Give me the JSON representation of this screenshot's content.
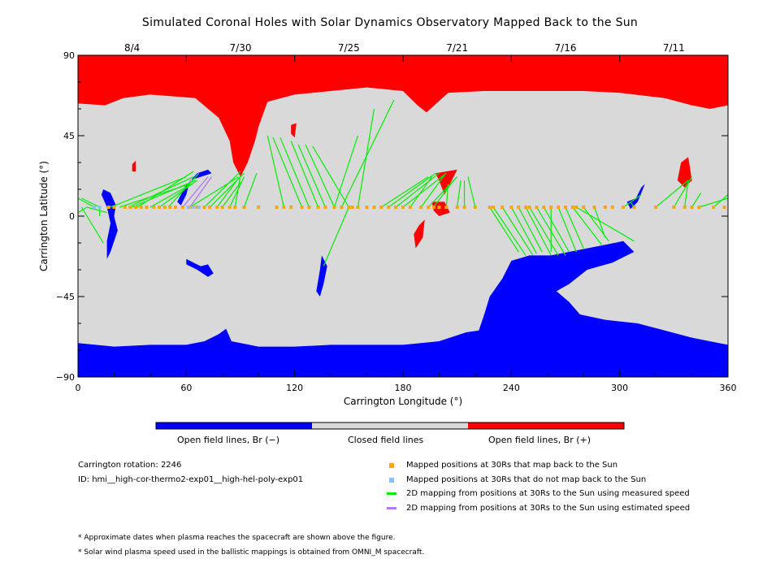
{
  "title": "Simulated Coronal Holes with Solar Dynamics Observatory Mapped Back to the Sun",
  "colors": {
    "open_negative": "#0000ff",
    "closed": "#d9d9d9",
    "open_positive": "#ff0000",
    "mapped": "#ffa500",
    "unmapped": "#87bfff",
    "measured_line": "#00ee00",
    "estimated_line": "#b07cf0"
  },
  "colorbar": {
    "labels": [
      "Open field lines, Br (−)",
      "Closed field lines",
      "Open field lines, Br (+)"
    ]
  },
  "info": {
    "rotation": "Carrington rotation: 2246",
    "id": "ID: hmi__high-cor-thermo2-exp01__high-hel-poly-exp01"
  },
  "legend": [
    {
      "kind": "square",
      "color": "#ffa500",
      "label": "Mapped positions at 30Rs that map back to the Sun"
    },
    {
      "kind": "square",
      "color": "#87bfff",
      "label": "Mapped positions at 30Rs that do not map back to the Sun"
    },
    {
      "kind": "line",
      "color": "#00ee00",
      "label": "2D mapping from positions at 30Rs to the Sun using measured speed"
    },
    {
      "kind": "line",
      "color": "#b07cf0",
      "label": "2D mapping from positions at 30Rs to the Sun using estimated speed"
    }
  ],
  "notes": [
    "* Approximate dates when plasma reaches the spacecraft are shown above the figure.",
    "* Solar wind plasma speed used in the ballistic mappings is obtained from OMNI_M spacecraft."
  ],
  "chart_data": {
    "type": "map",
    "xlabel": "Carrington Longitude (°)",
    "ylabel": "Carrington Latitude (°)",
    "xlim": [
      0,
      360
    ],
    "ylim": [
      -90,
      90
    ],
    "x_ticks": [
      0,
      60,
      120,
      180,
      240,
      300,
      360
    ],
    "y_ticks": [
      90,
      45,
      0,
      -45,
      -90
    ],
    "y_tick_labels": [
      "90",
      "45",
      "0",
      "−45",
      "−90"
    ],
    "date_ticks": [
      {
        "lon": 30,
        "label": "8/4"
      },
      {
        "lon": 90,
        "label": "7/30"
      },
      {
        "lon": 150,
        "label": "7/25"
      },
      {
        "lon": 210,
        "label": "7/21"
      },
      {
        "lon": 270,
        "label": "7/16"
      },
      {
        "lon": 330,
        "label": "7/11"
      }
    ],
    "regions": [
      {
        "type": "open_positive",
        "points": [
          [
            0,
            90
          ],
          [
            360,
            90
          ],
          [
            360,
            62
          ],
          [
            350,
            60
          ],
          [
            340,
            62
          ],
          [
            325,
            66
          ],
          [
            300,
            69
          ],
          [
            280,
            70
          ],
          [
            260,
            70
          ],
          [
            240,
            70
          ],
          [
            225,
            70
          ],
          [
            205,
            69
          ],
          [
            193,
            58
          ],
          [
            188,
            62
          ],
          [
            180,
            70
          ],
          [
            160,
            72
          ],
          [
            140,
            70
          ],
          [
            120,
            68
          ],
          [
            105,
            64
          ],
          [
            100,
            50
          ],
          [
            98,
            42
          ],
          [
            94,
            30
          ],
          [
            90,
            22
          ],
          [
            86,
            30
          ],
          [
            84,
            42
          ],
          [
            78,
            55
          ],
          [
            65,
            66
          ],
          [
            40,
            68
          ],
          [
            25,
            66
          ],
          [
            15,
            62
          ],
          [
            0,
            63
          ]
        ]
      },
      {
        "type": "open_positive",
        "points": [
          [
            118,
            51
          ],
          [
            121,
            52
          ],
          [
            120,
            44
          ],
          [
            118,
            46
          ]
        ]
      },
      {
        "type": "open_positive",
        "points": [
          [
            198,
            24
          ],
          [
            210,
            26
          ],
          [
            207,
            20
          ],
          [
            203,
            12
          ],
          [
            200,
            20
          ]
        ]
      },
      {
        "type": "open_positive",
        "points": [
          [
            196,
            8
          ],
          [
            203,
            8
          ],
          [
            206,
            2
          ],
          [
            200,
            0
          ],
          [
            197,
            3
          ]
        ]
      },
      {
        "type": "open_positive",
        "points": [
          [
            189,
            -5
          ],
          [
            192,
            -2
          ],
          [
            191,
            -12
          ],
          [
            187,
            -18
          ],
          [
            186,
            -10
          ]
        ]
      },
      {
        "type": "open_positive",
        "points": [
          [
            334,
            30
          ],
          [
            338,
            33
          ],
          [
            340,
            20
          ],
          [
            336,
            16
          ],
          [
            332,
            20
          ]
        ]
      },
      {
        "type": "open_positive",
        "points": [
          [
            30,
            29
          ],
          [
            32,
            31
          ],
          [
            32,
            25
          ],
          [
            30,
            25
          ]
        ]
      },
      {
        "type": "open_negative",
        "points": [
          [
            0,
            -71
          ],
          [
            20,
            -73
          ],
          [
            40,
            -72
          ],
          [
            60,
            -72
          ],
          [
            70,
            -70
          ],
          [
            78,
            -66
          ],
          [
            82,
            -63
          ],
          [
            85,
            -70
          ],
          [
            100,
            -73
          ],
          [
            120,
            -73
          ],
          [
            140,
            -72
          ],
          [
            160,
            -72
          ],
          [
            180,
            -72
          ],
          [
            200,
            -70
          ],
          [
            215,
            -65
          ],
          [
            222,
            -64
          ],
          [
            225,
            -55
          ],
          [
            228,
            -45
          ],
          [
            235,
            -35
          ],
          [
            240,
            -25
          ],
          [
            250,
            -22
          ],
          [
            262,
            -22
          ],
          [
            272,
            -20
          ],
          [
            282,
            -18
          ],
          [
            292,
            -16
          ],
          [
            302,
            -14
          ],
          [
            308,
            -20
          ],
          [
            296,
            -26
          ],
          [
            282,
            -30
          ],
          [
            272,
            -38
          ],
          [
            265,
            -42
          ],
          [
            272,
            -48
          ],
          [
            278,
            -55
          ],
          [
            292,
            -58
          ],
          [
            310,
            -60
          ],
          [
            325,
            -64
          ],
          [
            340,
            -68
          ],
          [
            360,
            -72
          ],
          [
            360,
            -90
          ],
          [
            0,
            -90
          ]
        ]
      },
      {
        "type": "open_negative",
        "points": [
          [
            60,
            -24
          ],
          [
            64,
            -26
          ],
          [
            68,
            -28
          ],
          [
            72,
            -27
          ],
          [
            75,
            -32
          ],
          [
            72,
            -34
          ],
          [
            66,
            -30
          ],
          [
            60,
            -27
          ]
        ]
      },
      {
        "type": "open_negative",
        "points": [
          [
            135,
            -22
          ],
          [
            138,
            -28
          ],
          [
            136,
            -38
          ],
          [
            134,
            -45
          ],
          [
            132,
            -42
          ],
          [
            134,
            -30
          ]
        ]
      },
      {
        "type": "open_negative",
        "points": [
          [
            14,
            15
          ],
          [
            18,
            13
          ],
          [
            21,
            6
          ],
          [
            20,
            0
          ],
          [
            22,
            -8
          ],
          [
            18,
            -20
          ],
          [
            16,
            -24
          ],
          [
            16,
            -14
          ],
          [
            18,
            -4
          ],
          [
            16,
            5
          ],
          [
            13,
            12
          ]
        ]
      },
      {
        "type": "open_negative",
        "points": [
          [
            66,
            24
          ],
          [
            72,
            26
          ],
          [
            74,
            24
          ],
          [
            68,
            22
          ],
          [
            62,
            20
          ],
          [
            60,
            12
          ],
          [
            57,
            6
          ],
          [
            55,
            8
          ],
          [
            59,
            16
          ]
        ]
      },
      {
        "type": "open_negative",
        "points": [
          [
            312,
            16
          ],
          [
            314,
            18
          ],
          [
            310,
            8
          ],
          [
            306,
            4
          ],
          [
            304,
            8
          ],
          [
            309,
            10
          ]
        ]
      }
    ],
    "mapped_points": {
      "lat": 5,
      "mapped_lons": [
        17,
        20,
        26,
        29,
        32,
        35,
        38,
        42,
        45,
        48,
        51,
        54,
        58,
        62,
        66,
        70,
        73,
        77,
        80,
        84,
        87,
        92,
        100,
        110,
        114,
        118,
        124,
        128,
        133,
        137,
        142,
        146,
        150,
        152,
        155,
        160,
        164,
        168,
        172,
        176,
        180,
        184,
        190,
        194,
        197,
        200,
        204,
        210,
        214,
        220,
        228,
        230,
        235,
        240,
        244,
        248,
        250,
        254,
        258,
        262,
        266,
        270,
        274,
        276,
        280,
        286,
        292,
        296,
        302,
        308,
        320,
        330,
        336,
        340,
        344,
        352,
        358
      ],
      "unmapped_lons": [
        9,
        12,
        61,
        64,
        67
      ]
    },
    "mappings_measured": [
      [
        12,
        0,
        12
      ],
      [
        16,
        2,
        5
      ],
      [
        14,
        -15,
        2
      ],
      [
        60,
        22,
        18
      ],
      [
        62,
        18,
        23
      ],
      [
        64,
        22,
        28
      ],
      [
        65,
        20,
        30
      ],
      [
        64,
        25,
        33
      ],
      [
        63,
        18,
        40
      ],
      [
        66,
        20,
        45
      ],
      [
        67,
        24,
        50
      ],
      [
        89,
        22,
        62
      ],
      [
        90,
        25,
        70
      ],
      [
        92,
        24,
        73
      ],
      [
        88,
        20,
        77
      ],
      [
        90,
        19,
        80
      ],
      [
        92,
        22,
        84
      ],
      [
        90,
        23,
        87
      ],
      [
        99,
        24,
        92
      ],
      [
        105,
        45,
        114
      ],
      [
        108,
        44,
        124
      ],
      [
        112,
        44,
        128
      ],
      [
        118,
        42,
        133
      ],
      [
        122,
        40,
        137
      ],
      [
        126,
        40,
        142
      ],
      [
        130,
        39,
        150
      ],
      [
        175,
        65,
        146
      ],
      [
        164,
        60,
        155
      ],
      [
        155,
        45,
        142
      ],
      [
        136,
        -28,
        150
      ],
      [
        194,
        22,
        168
      ],
      [
        198,
        24,
        172
      ],
      [
        200,
        24,
        176
      ],
      [
        204,
        24,
        180
      ],
      [
        196,
        22,
        184
      ],
      [
        203,
        23,
        190
      ],
      [
        210,
        22,
        194
      ],
      [
        208,
        20,
        197
      ],
      [
        205,
        18,
        204
      ],
      [
        212,
        20,
        210
      ],
      [
        214,
        20,
        214
      ],
      [
        216,
        22,
        220
      ],
      [
        244,
        -20,
        228
      ],
      [
        248,
        -22,
        230
      ],
      [
        252,
        -22,
        235
      ],
      [
        254,
        -21,
        240
      ],
      [
        257,
        -20,
        244
      ],
      [
        262,
        -22,
        248
      ],
      [
        266,
        -22,
        250
      ],
      [
        270,
        -22,
        254
      ],
      [
        272,
        -20,
        258
      ],
      [
        262,
        -20,
        262
      ],
      [
        276,
        -20,
        266
      ],
      [
        280,
        -18,
        270
      ],
      [
        290,
        -16,
        274
      ],
      [
        308,
        -14,
        276
      ],
      [
        294,
        -14,
        280
      ],
      [
        292,
        -12,
        286
      ],
      [
        312,
        12,
        302
      ],
      [
        306,
        8,
        308
      ],
      [
        338,
        20,
        320
      ],
      [
        340,
        22,
        330
      ],
      [
        338,
        20,
        336
      ],
      [
        345,
        13,
        340
      ],
      [
        360,
        10,
        344
      ],
      [
        360,
        12,
        352
      ],
      [
        0,
        10,
        9
      ],
      [
        2,
        10,
        12
      ],
      [
        0,
        2,
        5
      ]
    ],
    "mappings_estimated": [
      [
        72,
        22,
        58
      ],
      [
        74,
        22,
        62
      ]
    ]
  }
}
